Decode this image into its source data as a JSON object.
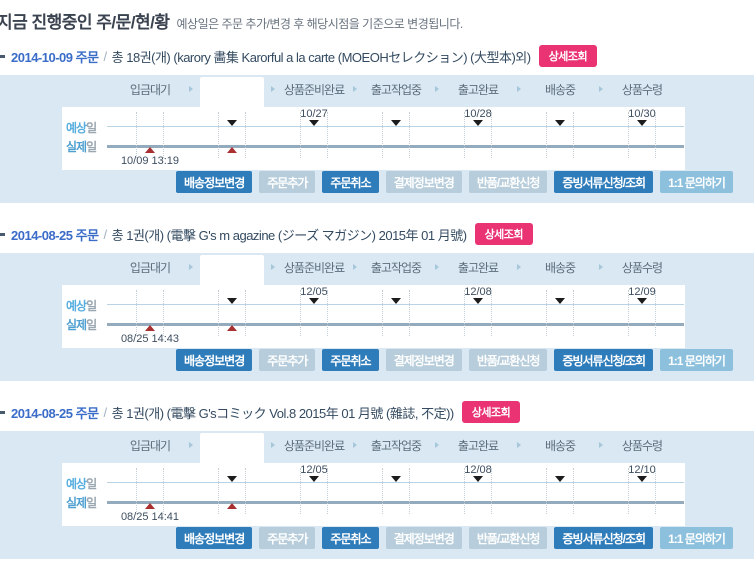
{
  "page": {
    "title": "지금 진행중인 주/문/현/황",
    "subtitle": "예상일은 주문 추가/변경 후 해당시점을 기준으로 변경됩니다."
  },
  "ui": {
    "detail_button": "상세조회",
    "slash": "/",
    "expected_label_main": "예상",
    "expected_label_suffix": "일",
    "actual_label_main": "실제",
    "actual_label_suffix": "일"
  },
  "stages": [
    "입금대기",
    "",
    "상품준비완료",
    "출고작업중",
    "출고완료",
    "배송중",
    "상품수령"
  ],
  "actions": [
    "배송정보변경",
    "주문추가",
    "주문취소",
    "결제정보변경",
    "반품/교환신청",
    "증빙서류신청/조회",
    "1:1 문의하기"
  ],
  "orders": [
    {
      "date_label": "2014-10-09 주문",
      "summary": "총 18권(개) (karory 畵集 Karorful a la carte (MOEOHセレクション) (大型本)외)",
      "expected_dates": [
        "10/27",
        "10/28",
        "10/30"
      ],
      "actual_datetime": "10/09 13:19"
    },
    {
      "date_label": "2014-08-25 주문",
      "summary": "총 1권(개) (電擊 G's m agazine (ジーズ マガジン) 2015年 01 月號)",
      "expected_dates": [
        "12/05",
        "12/08",
        "12/09"
      ],
      "actual_datetime": "08/25 14:43"
    },
    {
      "date_label": "2014-08-25 주문",
      "summary": "총 1권(개) (電擊 G'sコミック Vol.8 2015年 01 月號 (雜誌, 不定))",
      "expected_dates": [
        "12/05",
        "12/08",
        "12/10"
      ],
      "actual_datetime": "08/25 14:41"
    }
  ],
  "colors": {
    "accent_pink": "#e93372",
    "button_primary": "#2f7cba",
    "button_muted": "#b7cddb",
    "button_inquiry": "#8cc0dd",
    "section_bg": "#d9e8f2",
    "order_date_blue": "#3a6cc8",
    "expected_marker": "#1c1c1c",
    "actual_marker": "#a93030"
  }
}
